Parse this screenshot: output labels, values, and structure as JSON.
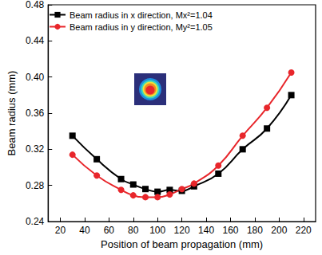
{
  "chart_data": {
    "type": "line",
    "x_label": "Position of beam propagation (mm)",
    "y_label": "Beam radius (mm)",
    "xlim": [
      10,
      230
    ],
    "xticks": [
      20,
      40,
      60,
      80,
      100,
      120,
      140,
      160,
      180,
      200,
      220
    ],
    "ylim": [
      0.24,
      0.48
    ],
    "yticks": [
      0.24,
      0.28,
      0.32,
      0.36,
      {
        "value": 0.4,
        "label": "0.40"
      },
      0.44,
      0.48
    ],
    "grid": false,
    "legend": "top-left",
    "series": [
      {
        "name": "Beam radius in x direction, Mx²=1.04",
        "color": "#000000",
        "marker": "square",
        "line_style": "solid",
        "x": [
          30,
          50,
          70,
          80,
          90,
          100,
          110,
          120,
          130,
          150,
          170,
          190,
          210
        ],
        "values": [
          0.335,
          0.309,
          0.287,
          0.281,
          0.276,
          0.273,
          0.275,
          0.274,
          0.279,
          0.293,
          0.32,
          0.343,
          0.38
        ]
      },
      {
        "name": "Beam radius in y direction, My²=1.05",
        "color": "#e8262b",
        "marker": "circle",
        "line_style": "solid",
        "x": [
          30,
          50,
          70,
          80,
          90,
          100,
          110,
          120,
          130,
          150,
          170,
          190,
          210
        ],
        "values": [
          0.314,
          0.291,
          0.275,
          0.269,
          0.267,
          0.267,
          0.27,
          0.276,
          0.282,
          0.302,
          0.335,
          0.366,
          0.405
        ]
      }
    ]
  }
}
